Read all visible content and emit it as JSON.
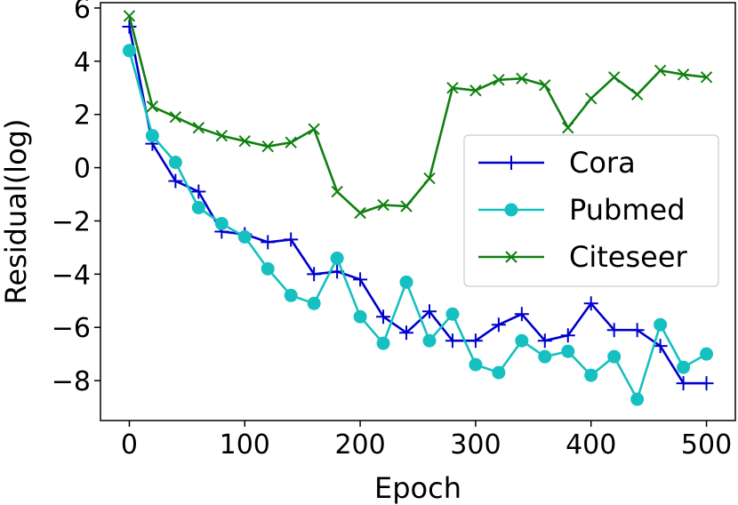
{
  "chart_data": {
    "type": "line",
    "title": "",
    "xlabel": "Epoch",
    "ylabel": "Residual(log)",
    "xlim": [
      -25,
      525
    ],
    "ylim": [
      -9.5,
      6.2
    ],
    "xticks": [
      0,
      100,
      200,
      300,
      400,
      500
    ],
    "xtick_labels": [
      "0",
      "100",
      "200",
      "300",
      "400",
      "500"
    ],
    "yticks": [
      -8,
      -6,
      -4,
      -2,
      0,
      2,
      4,
      6
    ],
    "ytick_labels": [
      "−8",
      "−6",
      "−4",
      "−2",
      "0",
      "2",
      "4",
      "6"
    ],
    "grid": false,
    "legend_position": "center-right",
    "x": [
      0,
      20,
      40,
      60,
      80,
      100,
      120,
      140,
      160,
      180,
      200,
      220,
      240,
      260,
      280,
      300,
      320,
      340,
      360,
      380,
      400,
      420,
      440,
      460,
      480,
      500
    ],
    "series": [
      {
        "name": "Cora",
        "color": "#0000cc",
        "marker": "plus",
        "values": [
          5.3,
          0.9,
          -0.5,
          -0.9,
          -2.4,
          -2.5,
          -2.8,
          -2.7,
          -4.0,
          -3.9,
          -4.2,
          -5.6,
          -6.2,
          -5.4,
          -6.5,
          -6.5,
          -5.9,
          -5.5,
          -6.5,
          -6.3,
          -5.1,
          -6.1,
          -6.1,
          -6.7,
          -8.1,
          -8.1
        ]
      },
      {
        "name": "Pubmed",
        "color": "#16c0c0",
        "marker": "circle",
        "values": [
          4.4,
          1.2,
          0.2,
          -1.5,
          -2.1,
          -2.6,
          -3.8,
          -4.8,
          -5.1,
          -3.4,
          -5.6,
          -6.6,
          -4.3,
          -6.5,
          -5.5,
          -7.4,
          -7.7,
          -6.5,
          -7.1,
          -6.9,
          -7.8,
          -7.1,
          -8.7,
          -5.9,
          -7.5,
          -7.0
        ]
      },
      {
        "name": "Citeseer",
        "color": "#108010",
        "marker": "x",
        "values": [
          5.7,
          2.3,
          1.9,
          1.5,
          1.2,
          1.0,
          0.8,
          0.95,
          1.45,
          -0.9,
          -1.7,
          -1.4,
          -1.45,
          -0.4,
          3.0,
          2.9,
          3.3,
          3.35,
          3.1,
          1.5,
          2.6,
          3.4,
          2.75,
          3.65,
          3.5,
          3.4
        ]
      }
    ]
  }
}
